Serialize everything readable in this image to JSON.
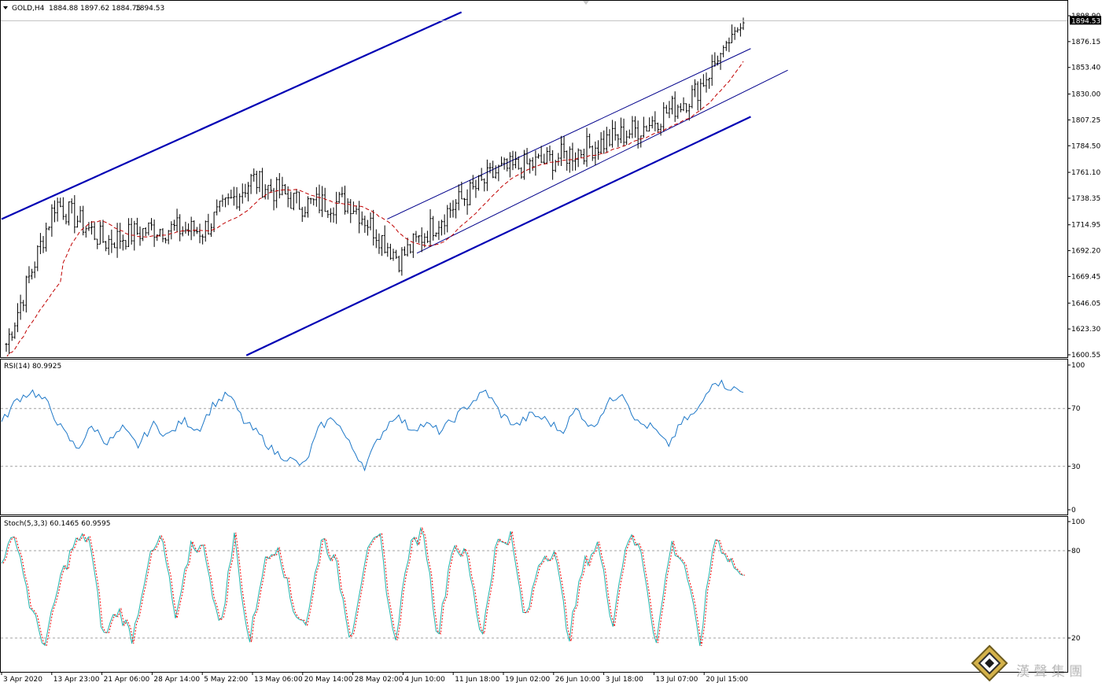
{
  "symbol_header": {
    "title": "GOLD,H4",
    "open": "1884.88",
    "high": "1897.62",
    "low": "1884.75",
    "close": "1894.53"
  },
  "current_price_label": "1894.53",
  "colors": {
    "background": "#ffffff",
    "candles": "#000000",
    "ma_line": "#c00000",
    "channel_thick": "#0000b4",
    "channel_thin": "#00008b",
    "rsi_line": "#1e78c8",
    "stoch_main": "#20b2aa",
    "stoch_signal": "#ff0000",
    "level_lines": "#a0a0a0",
    "price_tag_bg": "#000000",
    "price_tag_fg": "#ffffff"
  },
  "chart_data": [
    {
      "type": "candlestick",
      "title": "GOLD,H4",
      "price_axis_ticks": [
        "1898.90",
        "1876.15",
        "1853.40",
        "1830.00",
        "1807.25",
        "1784.50",
        "1761.10",
        "1738.35",
        "1714.95",
        "1692.20",
        "1669.45",
        "1646.05",
        "1623.30",
        "1600.55"
      ],
      "ylim": [
        1600.55,
        1898.9
      ],
      "x_ticks": [
        "3 Apr 2020",
        "13 Apr 23:00",
        "21 Apr 06:00",
        "28 Apr 14:00",
        "5 May 22:00",
        "13 May 06:00",
        "20 May 14:00",
        "28 May 02:00",
        "4 Jun 10:00",
        "11 Jun 18:00",
        "19 Jun 02:00",
        "26 Jun 10:00",
        "3 Jul 18:00",
        "13 Jul 07:00",
        "20 Jul 15:00"
      ],
      "approx_close_path": [
        {
          "x": "3 Apr 2020",
          "y": 1610
        },
        {
          "x": "13 Apr 23:00",
          "y": 1735
        },
        {
          "x": "21 Apr 06:00",
          "y": 1700
        },
        {
          "x": "28 Apr 14:00",
          "y": 1712
        },
        {
          "x": "5 May 22:00",
          "y": 1710
        },
        {
          "x": "13 May 06:00",
          "y": 1755
        },
        {
          "x": "20 May 14:00",
          "y": 1733
        },
        {
          "x": "28 May 02:00",
          "y": 1735
        },
        {
          "x": "4 Jun 10:00",
          "y": 1685
        },
        {
          "x": "11 Jun 18:00",
          "y": 1728
        },
        {
          "x": "19 Jun 02:00",
          "y": 1762
        },
        {
          "x": "26 Jun 10:00",
          "y": 1771
        },
        {
          "x": "3 Jul 18:00",
          "y": 1785
        },
        {
          "x": "13 Jul 07:00",
          "y": 1802
        },
        {
          "x": "20 Jul 15:00",
          "y": 1830
        },
        {
          "x": "last",
          "y": 1894.53
        }
      ],
      "overlays": [
        "moving average (dashed red)",
        "ascending channel lines (blue)"
      ]
    },
    {
      "type": "line",
      "title": "RSI(14) 80.9925",
      "ylim": [
        0,
        100
      ],
      "levels": [
        30,
        70
      ],
      "axis_ticks": [
        "100",
        "70",
        "30",
        "0"
      ],
      "approx_values": [
        60,
        76,
        82,
        74,
        55,
        42,
        58,
        46,
        56,
        44,
        59,
        51,
        62,
        55,
        73,
        80,
        61,
        52,
        40,
        35,
        30,
        57,
        64,
        45,
        30,
        51,
        66,
        56,
        59,
        54,
        64,
        74,
        82,
        66,
        58,
        66,
        62,
        54,
        70,
        56,
        73,
        82,
        60,
        57,
        44,
        61,
        68,
        90,
        85,
        81
      ]
    },
    {
      "type": "line",
      "title": "Stoch(5,3,3) 60.1465 60.9595",
      "ylim": [
        0,
        100
      ],
      "levels": [
        20,
        80
      ],
      "axis_ticks": [
        "100",
        "80",
        "20"
      ],
      "approx_values": [
        75,
        90,
        40,
        15,
        60,
        85,
        90,
        20,
        40,
        20,
        70,
        90,
        30,
        85,
        80,
        25,
        90,
        15,
        70,
        85,
        40,
        30,
        90,
        70,
        20,
        75,
        90,
        15,
        80,
        95,
        20,
        85,
        75,
        20,
        85,
        90,
        30,
        75,
        80,
        20,
        70,
        85,
        30,
        90,
        80,
        15,
        85,
        70,
        15,
        90,
        75,
        60
      ]
    }
  ],
  "watermark": {
    "text": "漢 聲 集 團"
  }
}
